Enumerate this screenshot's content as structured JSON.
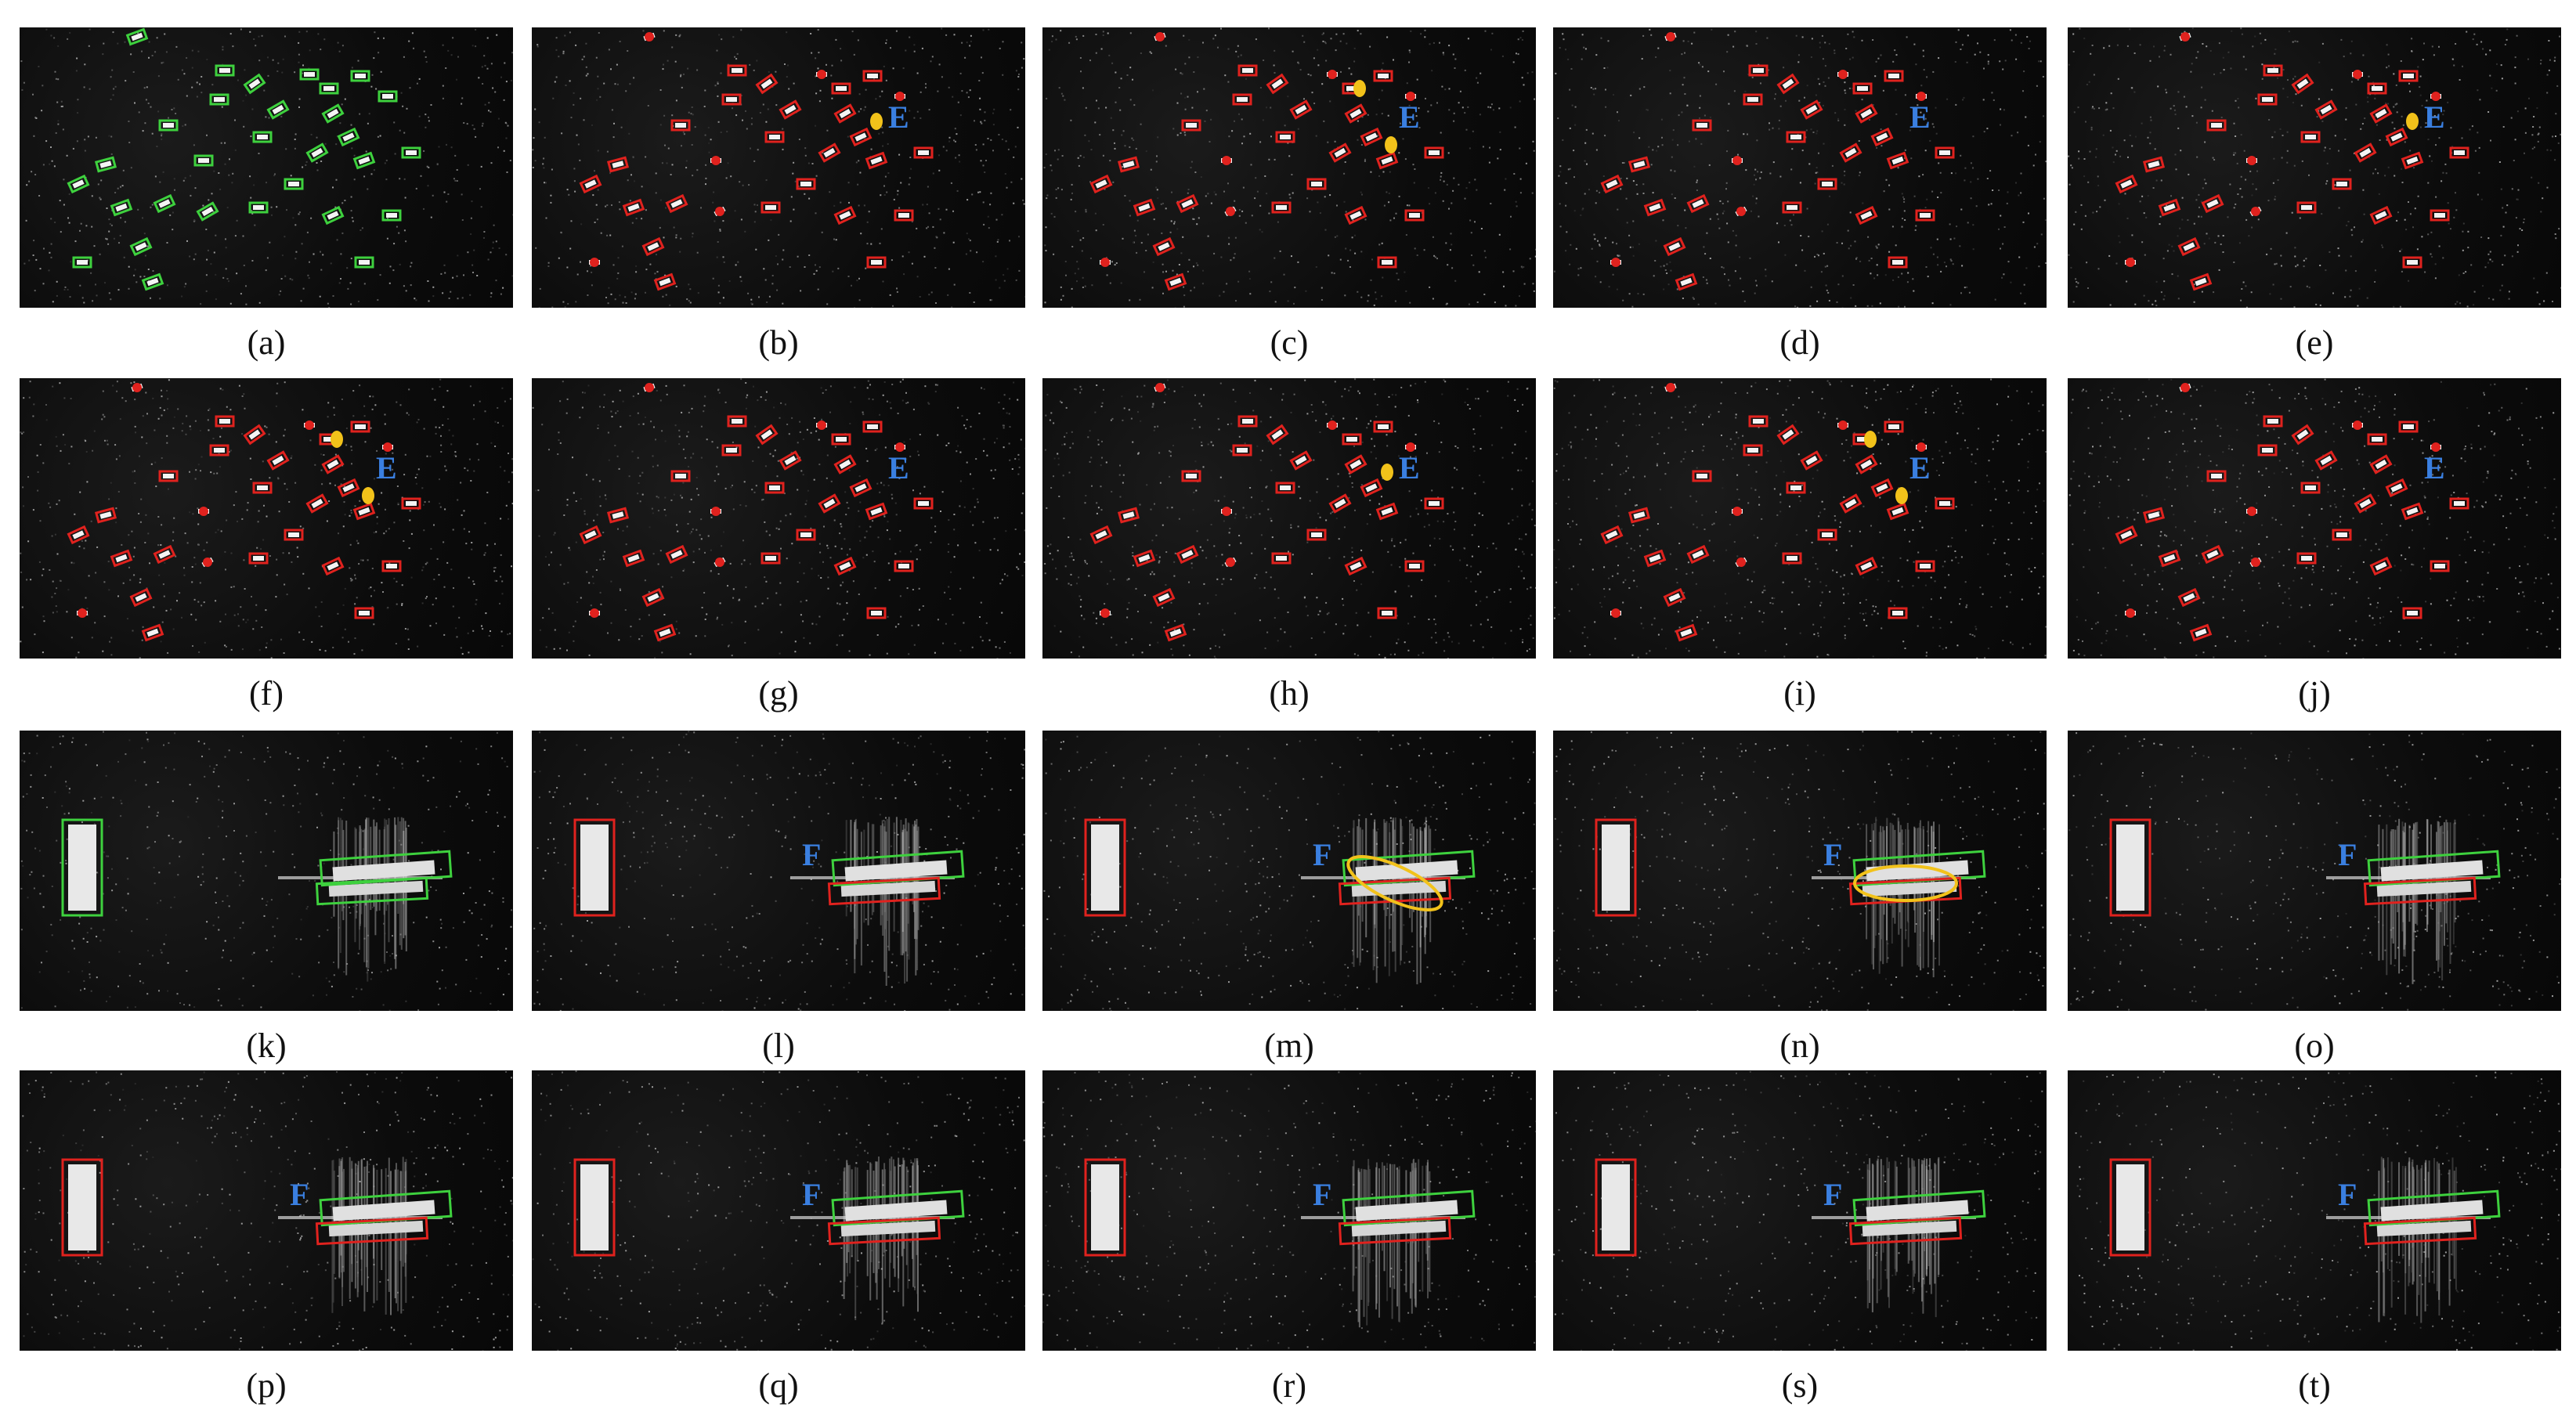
{
  "colors": {
    "ground_truth": "#3ed13e",
    "detection": "#e0221e",
    "missed_or_false": "#f2c21a",
    "marker_text": "#3a7fe0",
    "background": "#0c0c0c"
  },
  "panels": [
    {
      "caption": "(a)",
      "scene": "dense",
      "style": "truth",
      "marker": ""
    },
    {
      "caption": "(b)",
      "scene": "dense",
      "style": "det",
      "marker": "E"
    },
    {
      "caption": "(c)",
      "scene": "dense",
      "style": "det",
      "marker": "E"
    },
    {
      "caption": "(d)",
      "scene": "dense",
      "style": "det",
      "marker": "E"
    },
    {
      "caption": "(e)",
      "scene": "dense",
      "style": "det",
      "marker": "E"
    },
    {
      "caption": "(f)",
      "scene": "dense",
      "style": "det",
      "marker": "E"
    },
    {
      "caption": "(g)",
      "scene": "dense",
      "style": "det",
      "marker": "E"
    },
    {
      "caption": "(h)",
      "scene": "dense",
      "style": "det",
      "marker": "E"
    },
    {
      "caption": "(i)",
      "scene": "dense",
      "style": "det",
      "marker": "E"
    },
    {
      "caption": "(j)",
      "scene": "dense",
      "style": "det",
      "marker": "E"
    },
    {
      "caption": "(k)",
      "scene": "pair",
      "style": "truth",
      "marker": ""
    },
    {
      "caption": "(l)",
      "scene": "pair",
      "style": "det",
      "marker": "F"
    },
    {
      "caption": "(m)",
      "scene": "pair",
      "style": "det",
      "marker": "F"
    },
    {
      "caption": "(n)",
      "scene": "pair",
      "style": "det",
      "marker": "F"
    },
    {
      "caption": "(o)",
      "scene": "pair",
      "style": "det",
      "marker": "F"
    },
    {
      "caption": "(p)",
      "scene": "pair",
      "style": "det",
      "marker": "F"
    },
    {
      "caption": "(q)",
      "scene": "pair",
      "style": "det",
      "marker": "F"
    },
    {
      "caption": "(r)",
      "scene": "pair",
      "style": "det",
      "marker": "F"
    },
    {
      "caption": "(s)",
      "scene": "pair",
      "style": "det",
      "marker": "F"
    },
    {
      "caption": "(t)",
      "scene": "pair",
      "style": "det",
      "marker": "F"
    }
  ]
}
